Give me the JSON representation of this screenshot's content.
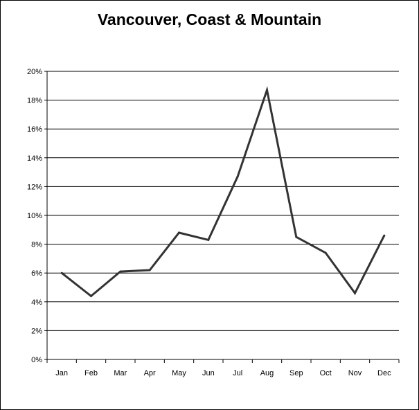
{
  "chart_data": {
    "type": "line",
    "title": "Vancouver, Coast & Mountain",
    "xlabel": "",
    "ylabel": "",
    "categories": [
      "Jan",
      "Feb",
      "Mar",
      "Apr",
      "May",
      "Jun",
      "Jul",
      "Aug",
      "Sep",
      "Oct",
      "Nov",
      "Dec"
    ],
    "series": [
      {
        "values": [
          6.0,
          4.4,
          6.1,
          6.2,
          8.8,
          8.3,
          12.7,
          18.7,
          8.5,
          7.4,
          4.6,
          8.6
        ]
      }
    ],
    "ylim": [
      0,
      20
    ],
    "yticks": [
      0,
      2,
      4,
      6,
      8,
      10,
      12,
      14,
      16,
      18,
      20
    ],
    "ytick_format": "percent",
    "grid": true,
    "legend": "none",
    "line_color": "#333333"
  }
}
